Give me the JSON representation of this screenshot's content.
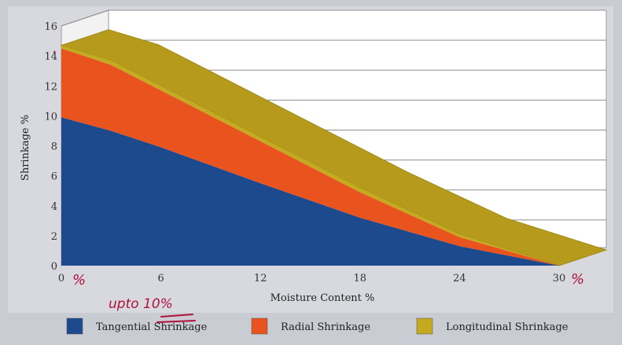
{
  "chart_data": {
    "type": "area",
    "stacked": true,
    "x": [
      0,
      3,
      6,
      12,
      18,
      24,
      30
    ],
    "xlim": [
      0,
      30
    ],
    "ylim": [
      0,
      16
    ],
    "xticks": [
      0,
      6,
      12,
      18,
      24,
      30
    ],
    "yticks": [
      0,
      2,
      4,
      6,
      8,
      10,
      12,
      14,
      16
    ],
    "xlabel": "Moisture Content %",
    "ylabel": "Shrinkage %",
    "grid": true,
    "legend_position": "bottom",
    "series": [
      {
        "name": "Tangential Shrinkage",
        "color": "#1c4a8c",
        "values": [
          9.9,
          9.0,
          7.9,
          5.5,
          3.2,
          1.3,
          0
        ]
      },
      {
        "name": "Radial Shrinkage",
        "color": "#e8531e",
        "values": [
          4.6,
          4.4,
          3.8,
          2.8,
          1.7,
          0.6,
          0
        ]
      },
      {
        "name": "Longitudinal Shrinkage",
        "color": "#c4aa20",
        "values": [
          0.2,
          0.3,
          0.3,
          0.3,
          0.3,
          0.2,
          0
        ]
      }
    ],
    "top_face_color": "#b59a1c",
    "annotations": {
      "x0_pct": "%",
      "x30_pct": "%",
      "upto": "upto 10%",
      "dot_left": "·"
    }
  }
}
